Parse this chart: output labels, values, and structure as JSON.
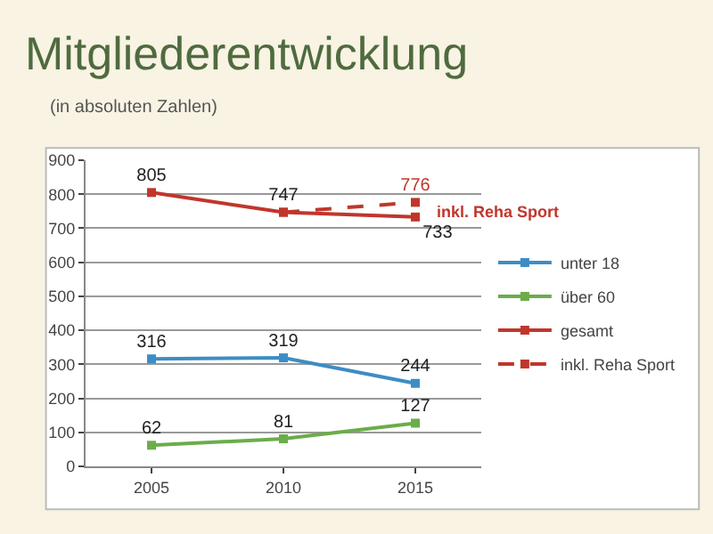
{
  "chart_data": {
    "type": "line",
    "title": "Mitgliederentwicklung",
    "subtitle": "(in absoluten Zahlen)",
    "categories": [
      "2005",
      "2010",
      "2015"
    ],
    "series": [
      {
        "name": "unter 18",
        "color": "#3d8dc4",
        "values": [
          316,
          319,
          244
        ],
        "value_labels": [
          "316",
          "319",
          "244"
        ]
      },
      {
        "name": "über 60",
        "color": "#6aad4a",
        "values": [
          62,
          81,
          127
        ],
        "value_labels": [
          "62",
          "81",
          "127"
        ]
      },
      {
        "name": "gesamt",
        "color": "#c0362c",
        "values": [
          805,
          747,
          733
        ],
        "value_labels": [
          "805",
          "747",
          "733"
        ]
      },
      {
        "name": "inkl. Reha Sport",
        "color": "#c0362c",
        "line_style": "dashed",
        "values": [
          null,
          747,
          776
        ],
        "value_labels": [
          null,
          null,
          "776"
        ]
      }
    ],
    "annotations": [
      {
        "text": "inkl. Reha Sport",
        "x": "2015",
        "y": 776
      }
    ],
    "ylim": [
      0,
      900
    ],
    "yticks": [
      0,
      100,
      200,
      300,
      400,
      500,
      600,
      700,
      800,
      900
    ],
    "grid": "y",
    "legend": "right",
    "marker": "square"
  }
}
